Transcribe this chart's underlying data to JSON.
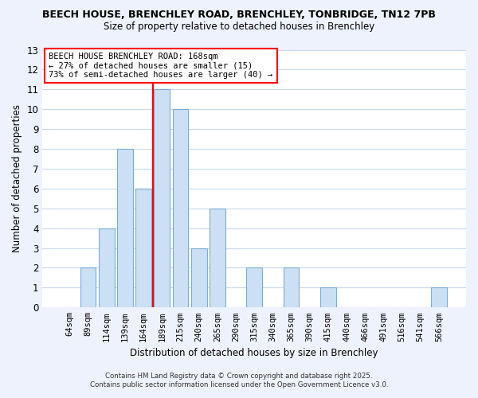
{
  "title1": "BEECH HOUSE, BRENCHLEY ROAD, BRENCHLEY, TONBRIDGE, TN12 7PB",
  "title2": "Size of property relative to detached houses in Brenchley",
  "xlabel": "Distribution of detached houses by size in Brenchley",
  "ylabel": "Number of detached properties",
  "bins": [
    "64sqm",
    "89sqm",
    "114sqm",
    "139sqm",
    "164sqm",
    "189sqm",
    "215sqm",
    "240sqm",
    "265sqm",
    "290sqm",
    "315sqm",
    "340sqm",
    "365sqm",
    "390sqm",
    "415sqm",
    "440sqm",
    "466sqm",
    "491sqm",
    "516sqm",
    "541sqm",
    "566sqm"
  ],
  "values": [
    0,
    2,
    4,
    8,
    6,
    11,
    10,
    3,
    5,
    0,
    2,
    0,
    2,
    0,
    1,
    0,
    0,
    0,
    0,
    0,
    1
  ],
  "bar_color": "#cce0f5",
  "bar_edge_color": "#7aadd4",
  "reference_line_color": "red",
  "reference_line_x": 4.5,
  "ylim": [
    0,
    13
  ],
  "yticks": [
    0,
    1,
    2,
    3,
    4,
    5,
    6,
    7,
    8,
    9,
    10,
    11,
    12,
    13
  ],
  "annotation_title": "BEECH HOUSE BRENCHLEY ROAD: 168sqm",
  "annotation_line1": "← 27% of detached houses are smaller (15)",
  "annotation_line2": "73% of semi-detached houses are larger (40) →",
  "footnote1": "Contains HM Land Registry data © Crown copyright and database right 2025.",
  "footnote2": "Contains public sector information licensed under the Open Government Licence v3.0.",
  "bg_color": "#eef2fc",
  "plot_bg_color": "#ffffff",
  "grid_color": "#c8d8ee"
}
